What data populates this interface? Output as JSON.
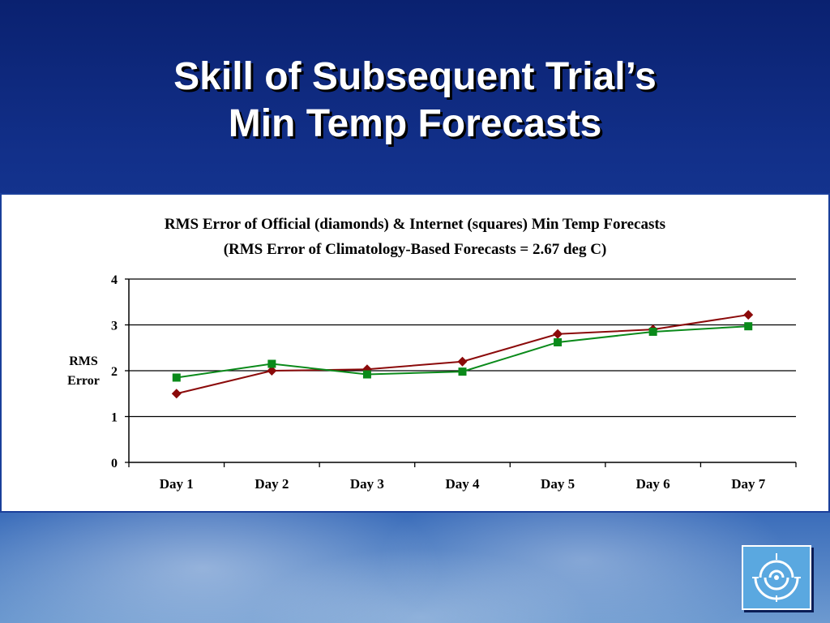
{
  "slide": {
    "title_line1": "Skill of Subsequent Trial’s",
    "title_line2": "Min Temp Forecasts"
  },
  "logo": {
    "icon": "spiral-logo-icon"
  },
  "colors": {
    "official": "#8b0a0a",
    "internet": "#0a8a1a",
    "title_text": "#ffffff",
    "background": "#0d2a7a"
  },
  "chart_data": {
    "type": "line",
    "title": "RMS Error of Official (diamonds) & Internet (squares) Min Temp Forecasts",
    "subtitle": "(RMS Error of Climatology-Based Forecasts = 2.67 deg C)",
    "xlabel": "",
    "ylabel_line1": "RMS",
    "ylabel_line2": "Error",
    "categories": [
      "Day 1",
      "Day 2",
      "Day 3",
      "Day 4",
      "Day 5",
      "Day 6",
      "Day 7"
    ],
    "y_ticks": [
      "0",
      "1",
      "2",
      "3",
      "4"
    ],
    "ylim": [
      0,
      4
    ],
    "grid": true,
    "series": [
      {
        "marker": "diamond",
        "color": "#8b0a0a",
        "values": [
          1.5,
          2.0,
          2.03,
          2.2,
          2.8,
          2.9,
          3.22
        ]
      },
      {
        "marker": "square",
        "color": "#0a8a1a",
        "values": [
          1.85,
          2.15,
          1.92,
          1.98,
          2.62,
          2.85,
          2.97
        ]
      }
    ]
  }
}
